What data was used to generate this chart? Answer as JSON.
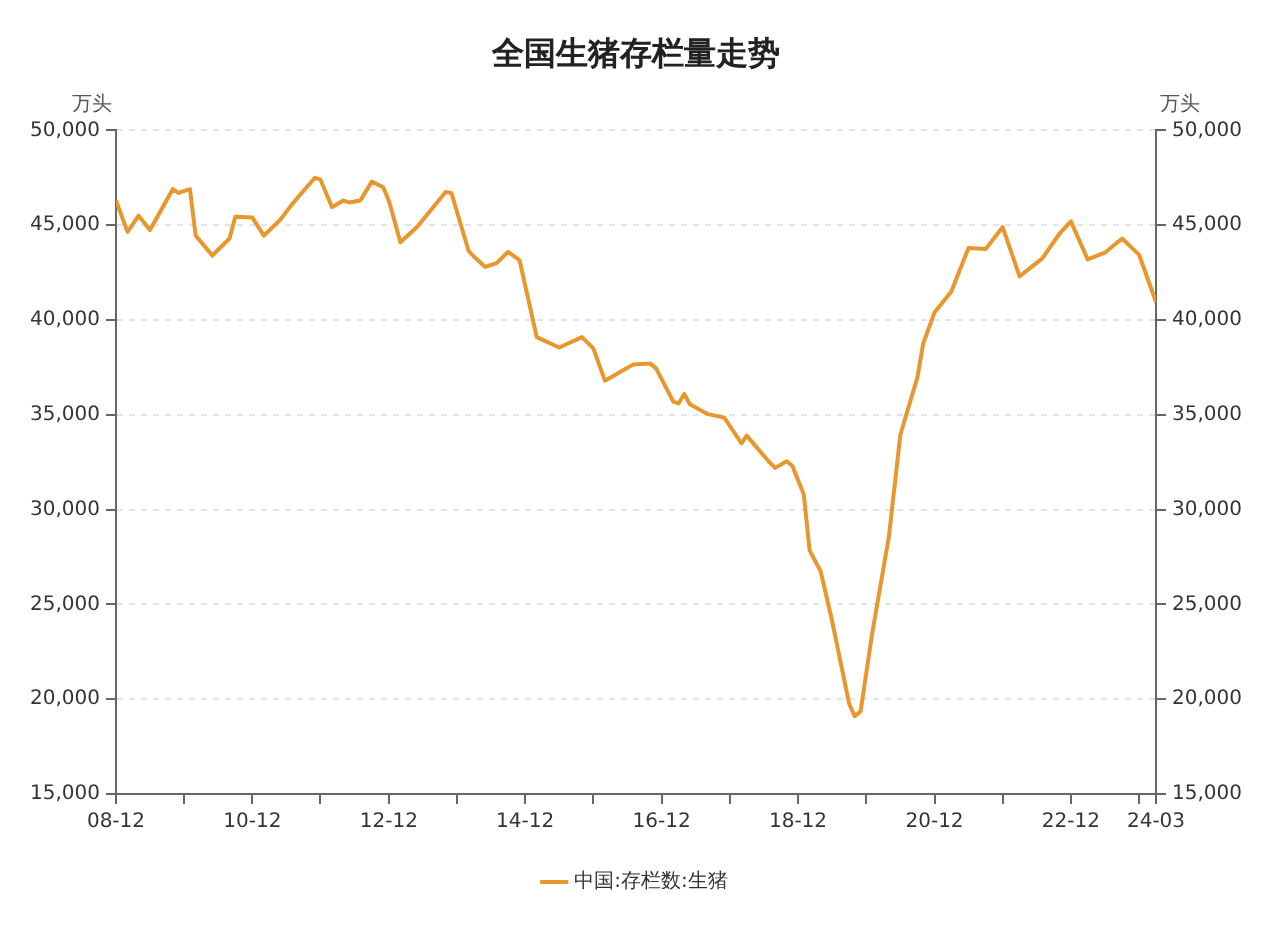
{
  "chart_data": {
    "type": "line",
    "title": "全国生猪存栏量走势",
    "ylabel": "万头",
    "y2label": "万头",
    "x": [
      "2008-12",
      "2009-02",
      "2009-04",
      "2009-06",
      "2009-10",
      "2009-11",
      "2010-01",
      "2010-02",
      "2010-05",
      "2010-08",
      "2010-09",
      "2010-12",
      "2011-02",
      "2011-05",
      "2011-07",
      "2011-11",
      "2011-12",
      "2012-02",
      "2012-04",
      "2012-05",
      "2012-07",
      "2012-09",
      "2012-11",
      "2012-12",
      "2013-02",
      "2013-05",
      "2013-10",
      "2013-11",
      "2014-02",
      "2014-03",
      "2014-05",
      "2014-07",
      "2014-09",
      "2014-11",
      "2015-02",
      "2015-06",
      "2015-10",
      "2015-12",
      "2016-02",
      "2016-07",
      "2016-10",
      "2016-11",
      "2017-02",
      "2017-03",
      "2017-04",
      "2017-05",
      "2017-08",
      "2017-11",
      "2018-02",
      "2018-03",
      "2018-07",
      "2018-08",
      "2018-10",
      "2018-11",
      "2019-01",
      "2019-02",
      "2019-04",
      "2019-06",
      "2019-09",
      "2019-10",
      "2019-11",
      "2020-01",
      "2020-04",
      "2020-06",
      "2020-09",
      "2020-10",
      "2020-12",
      "2021-03",
      "2021-06",
      "2021-09",
      "2021-12",
      "2022-03",
      "2022-07",
      "2022-10",
      "2022-12",
      "2023-03",
      "2023-06",
      "2023-09",
      "2023-12",
      "2024-03"
    ],
    "series": [
      {
        "name": "中国:存栏数:生猪",
        "color": "#e8962e",
        "values": [
          46300,
          44650,
          45500,
          44750,
          46900,
          46700,
          46900,
          44450,
          43400,
          44300,
          45450,
          45400,
          44450,
          45300,
          46100,
          47500,
          47400,
          45950,
          46300,
          46200,
          46300,
          47300,
          47000,
          46300,
          44100,
          44900,
          46750,
          46700,
          43650,
          43350,
          42800,
          43000,
          43600,
          43150,
          39100,
          38550,
          39100,
          38500,
          36800,
          37650,
          37700,
          37450,
          35700,
          35600,
          36100,
          35550,
          35050,
          34850,
          33500,
          33900,
          32500,
          32200,
          32550,
          32300,
          30800,
          27850,
          26750,
          24150,
          19750,
          19100,
          19350,
          23400,
          28600,
          33950,
          37000,
          38750,
          40400,
          41500,
          43800,
          43750,
          44900,
          42300,
          43250,
          44550,
          45200,
          43200,
          43550,
          44300,
          43450,
          40950
        ]
      }
    ],
    "xlim": [
      "2008-12",
      "2024-03"
    ],
    "xticks": [
      {
        "value": "2008-12",
        "label": "08-12"
      },
      {
        "value": "2009-12",
        "label": null
      },
      {
        "value": "2010-12",
        "label": "10-12"
      },
      {
        "value": "2011-12",
        "label": null
      },
      {
        "value": "2012-12",
        "label": "12-12"
      },
      {
        "value": "2013-12",
        "label": null
      },
      {
        "value": "2014-12",
        "label": "14-12"
      },
      {
        "value": "2015-12",
        "label": null
      },
      {
        "value": "2016-12",
        "label": "16-12"
      },
      {
        "value": "2017-12",
        "label": null
      },
      {
        "value": "2018-12",
        "label": "18-12"
      },
      {
        "value": "2019-12",
        "label": null
      },
      {
        "value": "2020-12",
        "label": "20-12"
      },
      {
        "value": "2021-12",
        "label": null
      },
      {
        "value": "2022-12",
        "label": "22-12"
      },
      {
        "value": "2023-12",
        "label": null
      },
      {
        "value": "2024-03",
        "label": "24-03"
      }
    ],
    "ylim": [
      15000,
      50000
    ],
    "yticks": [
      {
        "value": 15000,
        "label": "15,000"
      },
      {
        "value": 20000,
        "label": "20,000"
      },
      {
        "value": 25000,
        "label": "25,000"
      },
      {
        "value": 30000,
        "label": "30,000"
      },
      {
        "value": 35000,
        "label": "35,000"
      },
      {
        "value": 40000,
        "label": "40,000"
      },
      {
        "value": 45000,
        "label": "45,000"
      },
      {
        "value": 50000,
        "label": "50,000"
      }
    ],
    "y2lim": [
      15000,
      50000
    ],
    "y2ticks": [
      {
        "value": 15000,
        "label": "15,000"
      },
      {
        "value": 20000,
        "label": "20,000"
      },
      {
        "value": 25000,
        "label": "25,000"
      },
      {
        "value": 30000,
        "label": "30,000"
      },
      {
        "value": 35000,
        "label": "35,000"
      },
      {
        "value": 40000,
        "label": "40,000"
      },
      {
        "value": 45000,
        "label": "45,000"
      },
      {
        "value": 50000,
        "label": "50,000"
      }
    ],
    "grid": "y",
    "legend": "bottom",
    "marker": "none",
    "line_style": "solid"
  }
}
